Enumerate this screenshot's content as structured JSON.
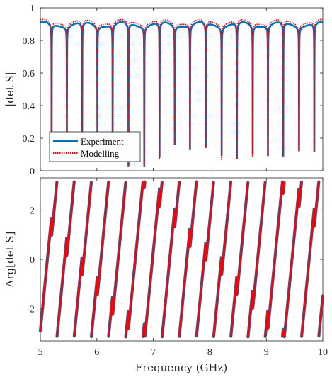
{
  "chart_data": [
    {
      "type": "line",
      "ylabel": "|det S|",
      "xlim": [
        5,
        10
      ],
      "ylim": [
        0,
        1
      ],
      "xticks": [
        "5",
        "6",
        "7",
        "8",
        "9",
        "10"
      ],
      "yticks": [
        "0",
        "0.2",
        "0.4",
        "0.6",
        "0.8",
        "1"
      ],
      "grid": false,
      "legend": {
        "placement": "bottom-left",
        "entries": [
          "Experiment",
          "Modelling"
        ]
      },
      "resonances_ghz": [
        5.2,
        5.47,
        5.74,
        6.01,
        6.28,
        6.56,
        6.84,
        7.11,
        7.38,
        7.65,
        7.93,
        8.21,
        8.48,
        8.76,
        9.03,
        9.3,
        9.58,
        9.85
      ],
      "dip_minima": [
        0.12,
        0.13,
        0.14,
        0.15,
        0.15,
        0.03,
        0.03,
        0.08,
        0.16,
        0.17,
        0.14,
        0.1,
        0.07,
        0.11,
        0.09,
        0.11,
        0.12,
        0.14
      ],
      "series": [
        {
          "name": "Experiment",
          "color": "#0072BD",
          "style": "solid",
          "baseline": 0.9
        },
        {
          "name": "Modelling",
          "color": "#FF0000",
          "style": "dotted",
          "baseline": 0.915
        }
      ]
    },
    {
      "type": "line",
      "xlabel": "Frequency (GHz)",
      "ylabel": "Arg[det S]",
      "xlim": [
        5,
        10
      ],
      "ylim": [
        -3.3,
        3.3
      ],
      "xticks": [
        "5",
        "6",
        "7",
        "8",
        "9",
        "10"
      ],
      "yticks": [
        "-2",
        "0",
        "2"
      ],
      "grid": false,
      "resonances_ghz": [
        5.2,
        5.47,
        5.74,
        6.01,
        6.28,
        6.56,
        6.84,
        7.11,
        7.38,
        7.65,
        7.93,
        8.21,
        8.48,
        8.76,
        9.03,
        9.3,
        9.58,
        9.85
      ],
      "phase_wrap": [
        -3.14159,
        3.14159
      ],
      "series": [
        {
          "name": "Experiment",
          "color": "#0072BD"
        },
        {
          "name": "Modelling",
          "color": "#FF0000"
        }
      ]
    }
  ]
}
